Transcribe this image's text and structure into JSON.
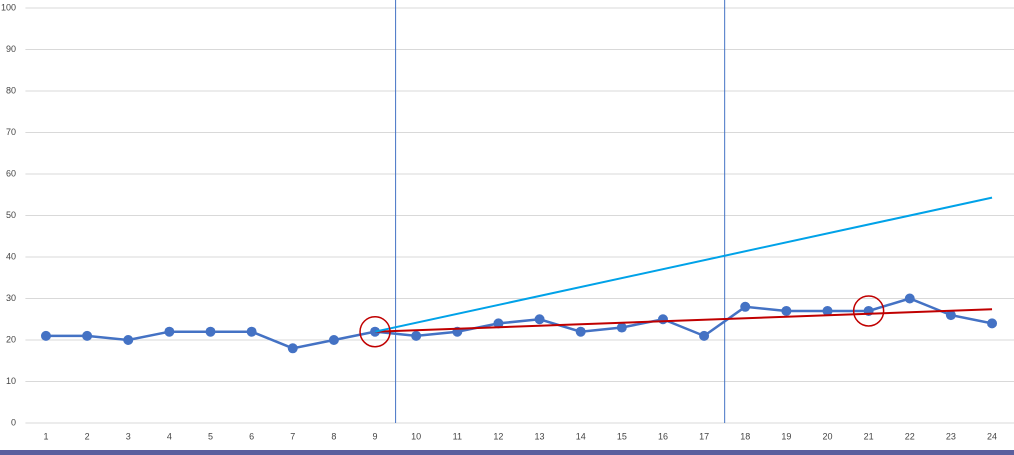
{
  "chart_data": {
    "type": "line",
    "x": [
      1,
      2,
      3,
      4,
      5,
      6,
      7,
      8,
      9,
      10,
      11,
      12,
      13,
      14,
      15,
      16,
      17,
      18,
      19,
      20,
      21,
      22,
      23,
      24
    ],
    "series": [
      {
        "color": "#4472c4",
        "markers": true,
        "values": [
          21,
          21,
          20,
          22,
          22,
          22,
          18,
          20,
          22,
          21,
          22,
          24,
          25,
          22,
          23,
          25,
          21,
          28,
          27,
          27,
          27,
          30,
          26,
          24
        ]
      },
      {
        "color": "#c00000",
        "markers": false,
        "values": [
          null,
          null,
          null,
          null,
          null,
          null,
          null,
          null,
          22,
          null,
          null,
          null,
          null,
          null,
          null,
          null,
          null,
          null,
          null,
          null,
          null,
          null,
          null,
          27.4
        ]
      },
      {
        "color": "#00a2e8",
        "markers": false,
        "values": [
          null,
          null,
          null,
          null,
          null,
          null,
          null,
          null,
          22,
          null,
          null,
          null,
          null,
          null,
          null,
          null,
          null,
          null,
          null,
          null,
          null,
          null,
          null,
          54.3
        ]
      }
    ],
    "xlim": [
      0.5,
      24.5
    ],
    "ylim": [
      0,
      100
    ],
    "yticks": [
      0,
      10,
      20,
      30,
      40,
      50,
      60,
      70,
      80,
      90,
      100
    ],
    "grid": true,
    "vlines": [
      9.5,
      17.5
    ],
    "vline_color": "#4472c4",
    "highlights": [
      9,
      21
    ],
    "highlight_color": "#c00000"
  }
}
